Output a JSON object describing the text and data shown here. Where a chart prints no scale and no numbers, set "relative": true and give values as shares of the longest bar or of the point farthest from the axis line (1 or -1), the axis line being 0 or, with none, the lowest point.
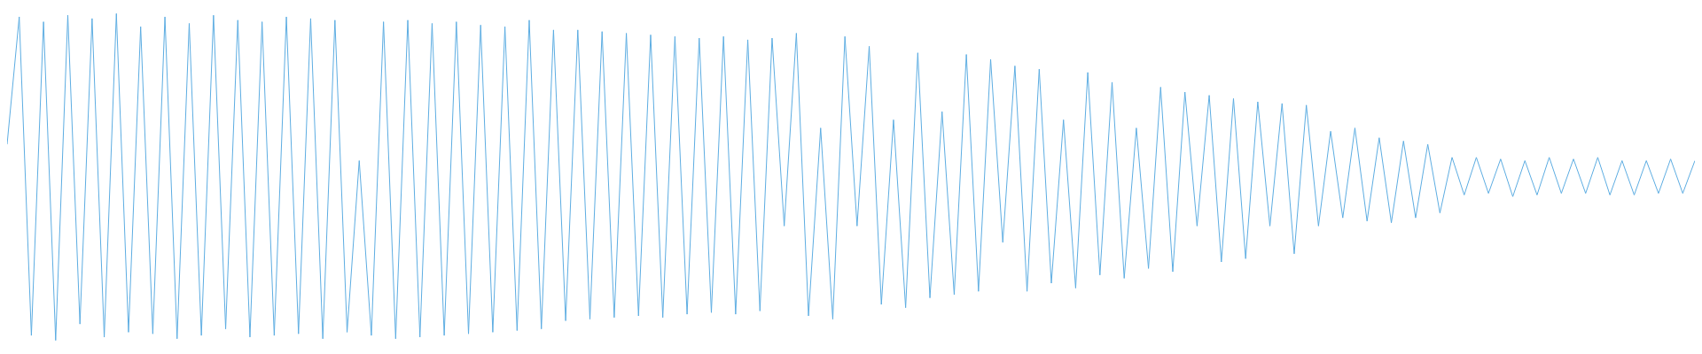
{
  "chart_data": {
    "type": "line",
    "relative": true,
    "marker": "none",
    "legend": false,
    "categories": [
      null,
      null,
      null,
      null,
      null,
      null,
      null,
      null,
      null,
      null,
      null,
      null,
      null,
      null,
      null,
      null,
      null,
      null,
      null,
      null,
      null,
      null,
      null,
      null,
      null,
      null,
      null,
      null,
      null,
      null,
      null,
      null,
      null,
      null,
      null,
      null,
      null,
      null,
      null,
      null,
      null,
      null,
      null,
      null,
      null,
      null,
      null,
      null,
      null,
      null,
      null,
      null,
      null,
      null,
      null,
      null,
      null,
      null,
      null,
      null,
      null,
      null,
      null,
      null,
      null,
      null,
      null,
      null,
      null,
      null,
      null,
      null,
      null,
      null,
      null,
      null,
      null,
      null,
      null,
      null,
      null,
      null,
      null,
      null,
      null,
      null,
      null,
      null,
      null,
      null,
      null,
      null,
      null,
      null,
      null,
      null,
      null,
      null,
      null,
      null,
      null,
      null,
      null,
      null,
      null,
      null,
      null,
      null,
      null,
      null,
      null,
      null,
      null,
      null,
      null,
      null,
      null,
      null,
      null,
      null,
      null,
      null,
      null,
      null,
      null,
      null,
      null,
      null,
      null,
      null,
      null,
      null,
      null,
      null,
      null,
      null,
      null,
      null,
      null,
      null
    ],
    "series": [
      {
        "color": "#5dade2",
        "values": [
          0.6,
          0.99,
          0.015,
          0.975,
          0,
          0.995,
          0.05,
          0.985,
          0.01,
          1,
          0.025,
          0.96,
          0.02,
          0.99,
          0.005,
          0.97,
          0.015,
          0.995,
          0.035,
          0.98,
          0.01,
          0.975,
          0.015,
          0.99,
          0.02,
          0.985,
          0.005,
          0.98,
          0.025,
          0.55,
          0.015,
          0.975,
          0.005,
          0.98,
          0.01,
          0.97,
          0.015,
          0.975,
          0.02,
          0.965,
          0.025,
          0.96,
          0.03,
          0.98,
          0.035,
          0.95,
          0.06,
          0.95,
          0.065,
          0.945,
          0.07,
          0.94,
          0.075,
          0.935,
          0.07,
          0.93,
          0.08,
          0.925,
          0.085,
          0.93,
          0.08,
          0.92,
          0.09,
          0.925,
          0.35,
          0.94,
          0.075,
          0.65,
          0.065,
          0.93,
          0.35,
          0.9,
          0.11,
          0.675,
          0.1,
          0.88,
          0.13,
          0.7,
          0.14,
          0.875,
          0.15,
          0.86,
          0.3,
          0.84,
          0.15,
          0.83,
          0.175,
          0.675,
          0.16,
          0.82,
          0.2,
          0.79,
          0.19,
          0.65,
          0.22,
          0.775,
          0.21,
          0.76,
          0.35,
          0.75,
          0.24,
          0.74,
          0.25,
          0.73,
          0.35,
          0.725,
          0.265,
          0.72,
          0.35,
          0.64,
          0.375,
          0.65,
          0.365,
          0.62,
          0.36,
          0.61,
          0.375,
          0.6,
          0.39,
          0.56,
          0.445,
          0.56,
          0.45,
          0.555,
          0.44,
          0.55,
          0.445,
          0.56,
          0.45,
          0.555,
          0.45,
          0.56,
          0.445,
          0.55,
          0.445,
          0.55,
          0.45,
          0.555,
          0.45,
          0.55
        ]
      }
    ]
  }
}
